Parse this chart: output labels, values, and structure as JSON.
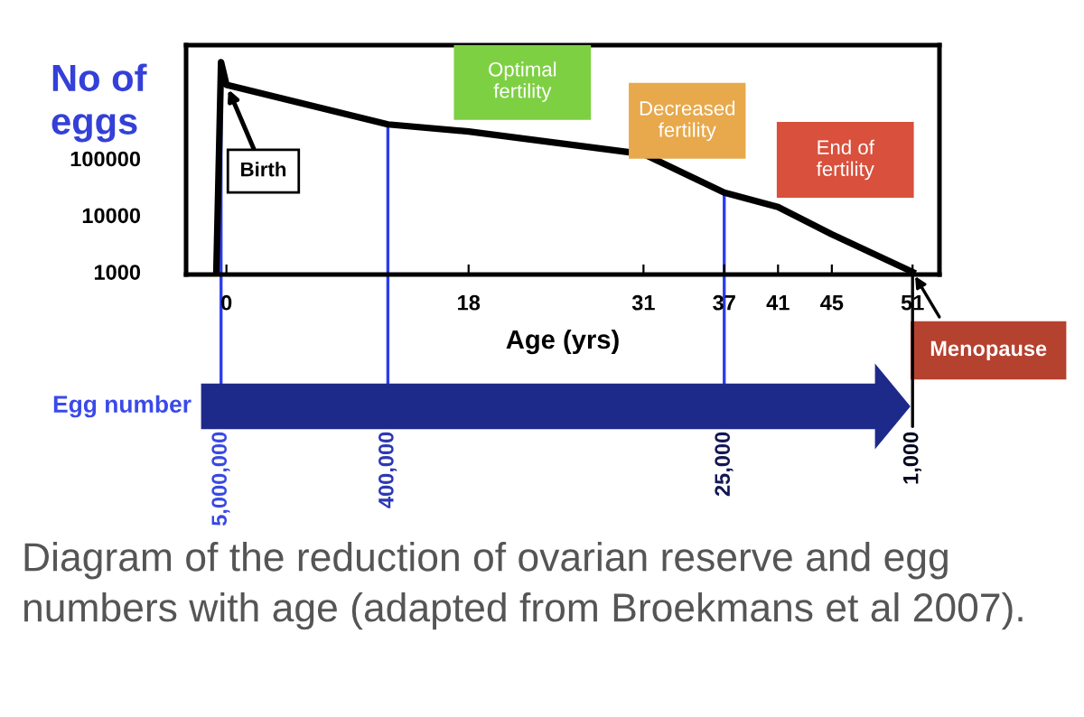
{
  "chart_data": {
    "type": "line",
    "xlabel": "Age (yrs)",
    "ylabel": "No of\neggs",
    "x": [
      -0.75,
      -0.4,
      0,
      12,
      18,
      31,
      37,
      41,
      45,
      51
    ],
    "series": [
      {
        "color": "#000000",
        "values": [
          1000,
          5000000,
          2000000,
          400000,
          300000,
          120000,
          25000,
          14000,
          4600,
          1000
        ]
      }
    ],
    "log": "y",
    "ylim": [
      900,
      10000000
    ],
    "yticks": [
      1000,
      10000,
      100000
    ],
    "xlim": [
      -3,
      53
    ],
    "xticks": [
      0,
      18,
      31,
      37,
      41,
      45,
      51
    ],
    "grid": false,
    "legend": false,
    "marker": "none",
    "line_style": "solid",
    "bands": [
      {
        "axis": "x",
        "from": 17,
        "to": 27,
        "label": "Optimal\nfertility",
        "color": "#7ed043"
      },
      {
        "axis": "x",
        "from": 30,
        "to": 38.5,
        "label": "Decreased\nfertility",
        "color": "#e8a94c"
      },
      {
        "axis": "x",
        "from": 41,
        "to": 51,
        "label": "End of\nfertility",
        "color": "#d9503c"
      }
    ],
    "annotations": [
      {
        "text": "Birth",
        "x": 0,
        "y": 2000000
      },
      {
        "text": "Menopause",
        "x": 51,
        "y": 1000
      },
      {
        "text": "5,000,000",
        "x": -0.4,
        "y": 5000000
      },
      {
        "text": "400,000",
        "x": 12,
        "y": 400000
      },
      {
        "text": "25,000",
        "x": 37,
        "y": 25000
      },
      {
        "text": "1,000",
        "x": 51,
        "y": 1000
      },
      "Egg number",
      "Diagram of the reduction of ovarian reserve and egg numbers with age (adapted from Broekmans et al 2007)."
    ]
  }
}
